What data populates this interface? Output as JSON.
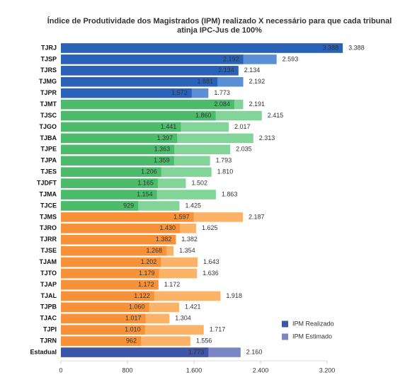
{
  "chart_data": {
    "type": "hbar-overlap",
    "title": "Índice de Produtividade dos Magistrados (IPM) realizado X necessário para que cada tribunal atinja IPC-Jus de 100%",
    "categories": [
      "TJRJ",
      "TJSP",
      "TJRS",
      "TJMG",
      "TJPR",
      "TJMT",
      "TJSC",
      "TJGO",
      "TJBA",
      "TJPE",
      "TJPA",
      "TJES",
      "TJDFT",
      "TJMA",
      "TJCE",
      "TJMS",
      "TJRO",
      "TJRR",
      "TJSE",
      "TJAM",
      "TJTO",
      "TJAP",
      "TJAL",
      "TJPB",
      "TJAC",
      "TJPI",
      "TJRN",
      "Estadual"
    ],
    "series": [
      {
        "name": "IPM Realizado",
        "color": "#3f55a8",
        "values": [
          3388,
          2192,
          2134,
          1881,
          1572,
          2084,
          1860,
          1441,
          1397,
          1363,
          1359,
          1206,
          1165,
          1154,
          929,
          1597,
          1430,
          1382,
          1268,
          1202,
          1179,
          1172,
          1122,
          1060,
          1017,
          1010,
          962,
          1773
        ],
        "value_labels": [
          "3.388",
          "2.192",
          "2.134",
          "1.881",
          "1.572",
          "2.084",
          "1.860",
          "1.441",
          "1.397",
          "1.363",
          "1.359",
          "1.206",
          "1.165",
          "1.154",
          "929",
          "1.597",
          "1.430",
          "1.382",
          "1.268",
          "1.202",
          "1.179",
          "1.172",
          "1.122",
          "1.060",
          "1.017",
          "1.010",
          "962",
          "1.773"
        ],
        "colors": [
          "#2a62b9",
          "#2a62b9",
          "#2a62b9",
          "#2a62b9",
          "#2a62b9",
          "#4cbb6c",
          "#4cbb6c",
          "#4cbb6c",
          "#4cbb6c",
          "#4cbb6c",
          "#4cbb6c",
          "#4cbb6c",
          "#4cbb6c",
          "#4cbb6c",
          "#4cbb6c",
          "#f7923a",
          "#f7923a",
          "#f7923a",
          "#f7923a",
          "#f7923a",
          "#f7923a",
          "#f7923a",
          "#f7923a",
          "#f7923a",
          "#f7923a",
          "#f7923a",
          "#f7923a",
          "#3f55a8"
        ]
      },
      {
        "name": "IPM Estimado",
        "color": "#7b86c4",
        "values": [
          3388,
          2593,
          2134,
          2192,
          1773,
          2191,
          2415,
          2017,
          2313,
          2035,
          1793,
          1810,
          1502,
          1863,
          1425,
          2187,
          1625,
          1382,
          1354,
          1643,
          1636,
          1172,
          1918,
          1421,
          1304,
          1717,
          1556,
          2160
        ],
        "value_labels": [
          "3.388",
          "2.593",
          "2.134",
          "2.192",
          "1.773",
          "2.191",
          "2.415",
          "2.017",
          "2.313",
          "2.035",
          "1.793",
          "1.810",
          "1.502",
          "1.863",
          "1.425",
          "2.187",
          "1.625",
          "1.382",
          "1.354",
          "1.643",
          "1.636",
          "1.172",
          "1.918",
          "1.421",
          "1.304",
          "1.717",
          "1.556",
          "2.160"
        ],
        "colors": [
          "#5a8fd6",
          "#5a8fd6",
          "#5a8fd6",
          "#5a8fd6",
          "#5a8fd6",
          "#82d498",
          "#82d498",
          "#82d498",
          "#82d498",
          "#82d498",
          "#82d498",
          "#82d498",
          "#82d498",
          "#82d498",
          "#82d498",
          "#fbb269",
          "#fbb269",
          "#fbb269",
          "#fbb269",
          "#fbb269",
          "#fbb269",
          "#fbb269",
          "#fbb269",
          "#fbb269",
          "#fbb269",
          "#fbb269",
          "#fbb269",
          "#7b86c4"
        ]
      }
    ],
    "xlim": [
      0,
      3200
    ],
    "xticks": [
      0,
      800,
      {
        "value": 1600,
        "label": "1.600"
      },
      {
        "value": 2400,
        "label": "2.400"
      },
      {
        "value": 3200,
        "label": "3.200"
      }
    ],
    "legend": "lower-right"
  }
}
